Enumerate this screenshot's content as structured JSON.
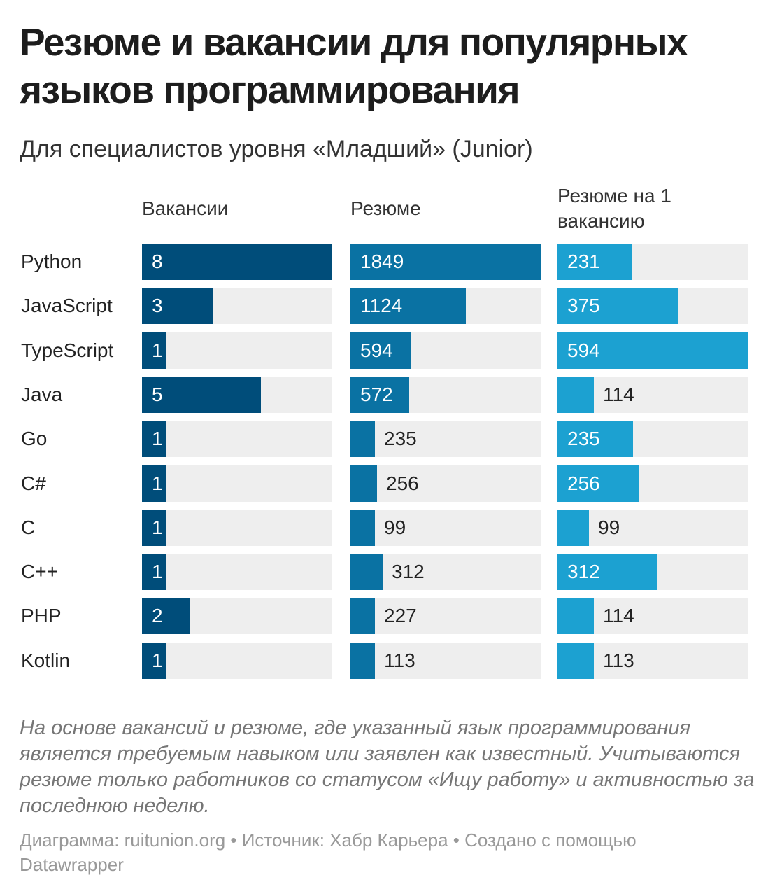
{
  "title": "Резюме и вакансии для популярных языков программирования",
  "subtitle": "Для специалистов уровня «Младший» (Junior)",
  "notes": "На основе вакансий и резюме, где указанный язык программирования является требуемым навыком или заявлен как известный. Учитываются резюме только работников со статусом «Ищу работу» и активностью за последнюю неделю.",
  "footer": "Диаграмма: ruitunion.org • Источник: Хабр Карьера • Создано с помощью Datawrapper",
  "chart_data": {
    "type": "bar",
    "categories": [
      "Python",
      "JavaScript",
      "TypeScript",
      "Java",
      "Go",
      "C#",
      "C",
      "C++",
      "PHP",
      "Kotlin"
    ],
    "series": [
      {
        "name": "Вакансии",
        "values": [
          8,
          3,
          1,
          5,
          1,
          1,
          1,
          1,
          2,
          1
        ],
        "max": 8,
        "color": "#004d7a"
      },
      {
        "name": "Резюме",
        "values": [
          1849,
          1124,
          594,
          572,
          235,
          256,
          99,
          312,
          227,
          113
        ],
        "max": 1849,
        "color": "#0a72a3"
      },
      {
        "name": "Резюме на 1 вакансию",
        "values": [
          231,
          375,
          594,
          114,
          235,
          256,
          99,
          312,
          114,
          113
        ],
        "max": 594,
        "color": "#1ca1d1"
      }
    ],
    "title": "Резюме и вакансии для популярных языков программирования",
    "subtitle": "Для специалистов уровня «Младший» (Junior)",
    "background_color": "#eeeeee",
    "grid": false,
    "legend": "none"
  }
}
